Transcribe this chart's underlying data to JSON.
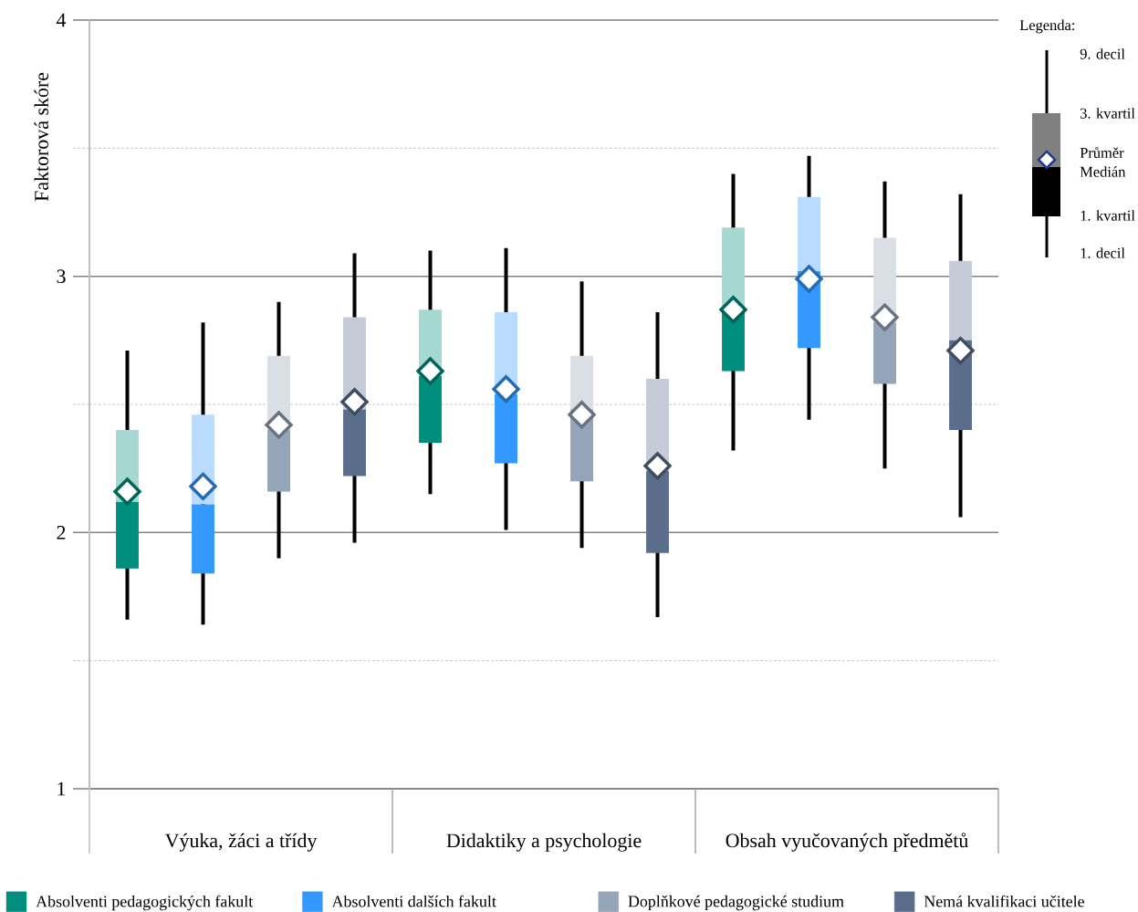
{
  "chart_data": {
    "type": "box",
    "ylabel": "Faktorová skóre",
    "categories": [
      "Výuka, žáci a třídy",
      "Didaktiky a psychologie",
      "Obsah vyučovaných předmětů"
    ],
    "ylim": [
      1,
      4
    ],
    "yticks": [
      1,
      {
        "value": 1.5,
        "label": null
      },
      2,
      {
        "value": 2.5,
        "label": null
      },
      3,
      {
        "value": 3.5,
        "label": null
      },
      4
    ],
    "grid": "y",
    "legend": "bottom",
    "marker": "diamond",
    "annotations": [
      "Legenda:",
      "9. decil",
      "3. kvartil",
      "Průměr",
      "Medián",
      "1. kvartil",
      "1. decil"
    ],
    "series": [
      {
        "name": "Absolventi pedagogických fakult",
        "color": "#008f7e",
        "boxes": [
          {
            "low": 1.66,
            "q1": 1.86,
            "median": 2.12,
            "q3": 2.4,
            "high": 2.71,
            "mean": 2.16
          },
          {
            "low": 2.15,
            "q1": 2.35,
            "median": 2.61,
            "q3": 2.87,
            "high": 3.1,
            "mean": 2.63
          },
          {
            "low": 2.32,
            "q1": 2.63,
            "median": 2.86,
            "q3": 3.19,
            "high": 3.4,
            "mean": 2.87
          }
        ]
      },
      {
        "name": "Absolventi dalších fakult",
        "color": "#3399ff",
        "boxes": [
          {
            "low": 1.64,
            "q1": 1.84,
            "median": 2.11,
            "q3": 2.46,
            "high": 2.82,
            "mean": 2.18
          },
          {
            "low": 2.01,
            "q1": 2.27,
            "median": 2.54,
            "q3": 2.86,
            "high": 3.11,
            "mean": 2.56
          },
          {
            "low": 2.44,
            "q1": 2.72,
            "median": 3.02,
            "q3": 3.31,
            "high": 3.47,
            "mean": 2.99
          }
        ]
      },
      {
        "name": "Doplňkové pedagogické studium",
        "color": "#94a5b9",
        "boxes": [
          {
            "low": 1.9,
            "q1": 2.16,
            "median": 2.4,
            "q3": 2.69,
            "high": 2.9,
            "mean": 2.42
          },
          {
            "low": 1.94,
            "q1": 2.2,
            "median": 2.48,
            "q3": 2.69,
            "high": 2.98,
            "mean": 2.46
          },
          {
            "low": 2.25,
            "q1": 2.58,
            "median": 2.82,
            "q3": 3.15,
            "high": 3.37,
            "mean": 2.84
          }
        ]
      },
      {
        "name": "Nemá kvalifikaci učitele",
        "color": "#5a6e8c",
        "boxes": [
          {
            "low": 1.96,
            "q1": 2.22,
            "median": 2.48,
            "q3": 2.84,
            "high": 3.09,
            "mean": 2.51
          },
          {
            "low": 1.67,
            "q1": 1.92,
            "median": 2.24,
            "q3": 2.6,
            "high": 2.86,
            "mean": 2.26
          },
          {
            "low": 2.06,
            "q1": 2.4,
            "median": 2.75,
            "q3": 3.06,
            "high": 3.32,
            "mean": 2.71
          }
        ]
      }
    ]
  }
}
